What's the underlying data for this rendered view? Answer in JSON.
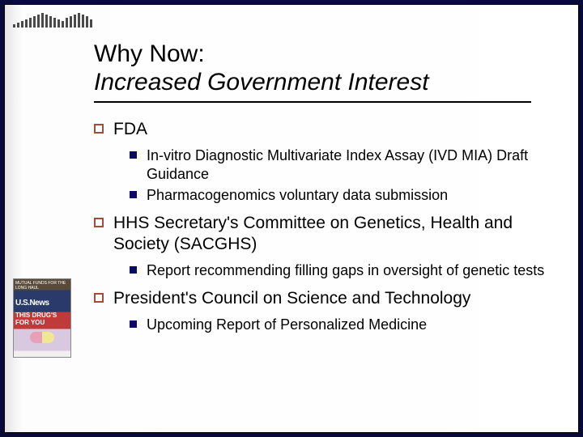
{
  "colors": {
    "slide_bg": "#0a0a3a",
    "content_bg": "#ffffff",
    "l1_marker_border": "#a84a3a",
    "l2_marker_fill": "#0a0a60",
    "text": "#000000",
    "underline": "#000000"
  },
  "typography": {
    "title_fontsize": 30,
    "l1_fontsize": 21,
    "l2_fontsize": 18,
    "font_family": "Arial"
  },
  "title": {
    "line1": "Why Now:",
    "line2": "Increased Government Interest"
  },
  "bullets": [
    {
      "text": "FDA",
      "children": [
        {
          "text": "In-vitro Diagnostic Multivariate Index Assay (IVD MIA) Draft Guidance"
        },
        {
          "text": "Pharmacogenomics voluntary data submission"
        }
      ]
    },
    {
      "text": "HHS Secretary's Committee on Genetics, Health and Society (SACGHS)",
      "children": [
        {
          "text": "Report recommending filling gaps in oversight of genetic tests"
        }
      ]
    },
    {
      "text": "President's Council on Science and Technology",
      "children": [
        {
          "text": "Upcoming Report of Personalized Medicine"
        }
      ]
    }
  ],
  "side_image": {
    "magazine": "U.S.News",
    "headline": "THIS DRUG'S FOR YOU"
  },
  "stripe_heights": [
    4,
    6,
    8,
    10,
    12,
    14,
    16,
    18,
    16,
    14,
    12,
    10,
    8,
    12,
    14,
    16,
    18,
    16,
    14,
    10
  ]
}
